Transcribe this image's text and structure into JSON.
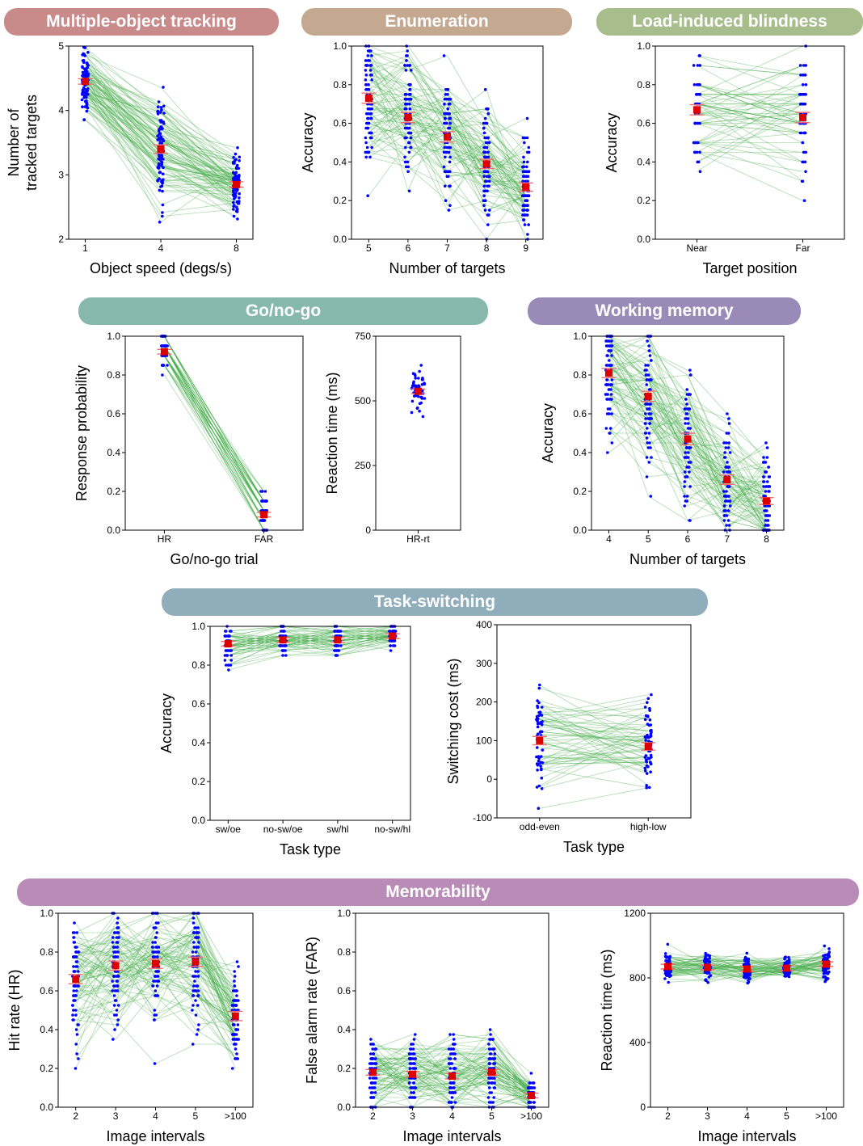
{
  "banners": [
    {
      "key": "mot",
      "label": "Multiple-object tracking",
      "color": "#c98a8a"
    },
    {
      "key": "enum",
      "label": "Enumeration",
      "color": "#c4a88f"
    },
    {
      "key": "lib",
      "label": "Load-induced blindness",
      "color": "#a7bd8c"
    },
    {
      "key": "gonogo",
      "label": "Go/no-go",
      "color": "#86b8ac"
    },
    {
      "key": "wm",
      "label": "Working memory",
      "color": "#9a8ab8"
    },
    {
      "key": "ts",
      "label": "Task-switching",
      "color": "#8fadbb"
    },
    {
      "key": "mem",
      "label": "Memorability",
      "color": "#b98cb8"
    }
  ],
  "colors": {
    "dots": "#0000ff",
    "lines": "#4caf50",
    "mean": "#dd0000",
    "err": "#f07070"
  },
  "chart_data": [
    {
      "id": "mot",
      "type": "scatter",
      "xlabel": "Object speed (degs/s)",
      "ylabel": "Number of\ntracked targets",
      "categories": [
        "1",
        "4",
        "8"
      ],
      "ylim": [
        2,
        5
      ],
      "yticks": [
        "2",
        "3",
        "4",
        "5"
      ],
      "means": [
        4.45,
        3.4,
        2.85
      ],
      "n": 90,
      "spread": [
        0.35,
        0.55,
        0.35
      ]
    },
    {
      "id": "enum",
      "type": "scatter",
      "xlabel": "Number of targets",
      "ylabel": "Accuracy",
      "categories": [
        "5",
        "6",
        "7",
        "8",
        "9"
      ],
      "ylim": [
        0,
        1
      ],
      "yticks": [
        "0.0",
        "0.2",
        "0.4",
        "0.6",
        "0.8",
        "1.0"
      ],
      "means": [
        0.73,
        0.63,
        0.53,
        0.39,
        0.27
      ],
      "n": 80,
      "spread": [
        0.22,
        0.22,
        0.22,
        0.2,
        0.18
      ]
    },
    {
      "id": "lib",
      "type": "scatter",
      "xlabel": "Target position",
      "ylabel": "Accuracy",
      "categories": [
        "Near",
        "Far"
      ],
      "ylim": [
        0,
        1
      ],
      "yticks": [
        "0.0",
        "0.2",
        "0.4",
        "0.6",
        "0.8",
        "1.0"
      ],
      "means": [
        0.67,
        0.63
      ],
      "n": 60,
      "spread": [
        0.22,
        0.22
      ]
    },
    {
      "id": "gng",
      "type": "scatter",
      "xlabel": "Go/no-go trial",
      "ylabel": "Response probability",
      "categories": [
        "HR",
        "FAR"
      ],
      "ylim": [
        0,
        1
      ],
      "yticks": [
        "0.0",
        "0.2",
        "0.4",
        "0.6",
        "0.8",
        "1.0"
      ],
      "means": [
        0.92,
        0.08
      ],
      "n": 50,
      "spread": [
        0.08,
        0.08
      ]
    },
    {
      "id": "gngrt",
      "type": "scatter",
      "xlabel": "",
      "ylabel": "Reaction time (ms)",
      "categories": [
        "HR-rt"
      ],
      "ylim": [
        0,
        750
      ],
      "yticks": [
        "0",
        "250",
        "500",
        "750"
      ],
      "means": [
        537
      ],
      "n": 50,
      "spread": [
        60
      ]
    },
    {
      "id": "wm",
      "type": "scatter",
      "xlabel": "Number of targets",
      "ylabel": "Accuracy",
      "categories": [
        "4",
        "5",
        "6",
        "7",
        "8"
      ],
      "ylim": [
        0,
        1
      ],
      "yticks": [
        "0.0",
        "0.2",
        "0.4",
        "0.6",
        "0.8",
        "1.0"
      ],
      "means": [
        0.81,
        0.69,
        0.47,
        0.26,
        0.15
      ],
      "n": 80,
      "spread": [
        0.2,
        0.22,
        0.25,
        0.2,
        0.15
      ]
    },
    {
      "id": "tsacc",
      "type": "scatter",
      "xlabel": "Task type",
      "ylabel": "Accuracy",
      "categories": [
        "sw/oe",
        "no-sw/oe",
        "sw/hl",
        "no-sw/hl"
      ],
      "ylim": [
        0,
        1
      ],
      "yticks": [
        "0.0",
        "0.2",
        "0.4",
        "0.6",
        "0.8",
        "1.0"
      ],
      "means": [
        0.91,
        0.93,
        0.93,
        0.95
      ],
      "n": 60,
      "spread": [
        0.07,
        0.05,
        0.06,
        0.04
      ]
    },
    {
      "id": "tscost",
      "type": "scatter",
      "xlabel": "Task type",
      "ylabel": "Switching cost (ms)",
      "categories": [
        "odd-even",
        "high-low"
      ],
      "ylim": [
        -100,
        400
      ],
      "yticks": [
        "-100",
        "0",
        "100",
        "200",
        "300",
        "400"
      ],
      "means": [
        100,
        85
      ],
      "n": 60,
      "spread": [
        90,
        80
      ]
    },
    {
      "id": "memhr",
      "type": "scatter",
      "xlabel": "Image intervals",
      "ylabel": "Hit rate (HR)",
      "categories": [
        "2",
        "3",
        "4",
        "5",
        ">100"
      ],
      "ylim": [
        0,
        1
      ],
      "yticks": [
        "0.0",
        "0.2",
        "0.4",
        "0.6",
        "0.8",
        "1.0"
      ],
      "means": [
        0.66,
        0.73,
        0.74,
        0.75,
        0.47
      ],
      "n": 80,
      "spread": [
        0.2,
        0.2,
        0.2,
        0.2,
        0.2
      ]
    },
    {
      "id": "memfar",
      "type": "scatter",
      "xlabel": "Image intervals",
      "ylabel": "False alarm rate (FAR)",
      "categories": [
        "2",
        "3",
        "4",
        "5",
        ">100"
      ],
      "ylim": [
        0,
        1
      ],
      "yticks": [
        "0.0",
        "0.2",
        "0.4",
        "0.6",
        "0.8",
        "1.0"
      ],
      "means": [
        0.18,
        0.17,
        0.16,
        0.18,
        0.06
      ],
      "n": 80,
      "spread": [
        0.12,
        0.12,
        0.12,
        0.12,
        0.06
      ]
    },
    {
      "id": "memrt",
      "type": "scatter",
      "xlabel": "Image intervals",
      "ylabel": "Reaction time (ms)",
      "categories": [
        "2",
        "3",
        "4",
        "5",
        ">100"
      ],
      "ylim": [
        0,
        1200
      ],
      "yticks": [
        "0",
        "400",
        "800",
        "1200"
      ],
      "means": [
        870,
        865,
        855,
        860,
        885
      ],
      "n": 60,
      "spread": [
        60,
        55,
        55,
        55,
        70
      ]
    }
  ]
}
